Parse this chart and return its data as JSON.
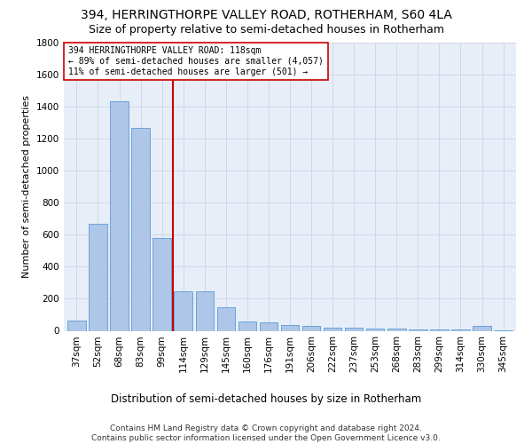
{
  "title": "394, HERRINGTHORPE VALLEY ROAD, ROTHERHAM, S60 4LA",
  "subtitle": "Size of property relative to semi-detached houses in Rotherham",
  "xlabel": "Distribution of semi-detached houses by size in Rotherham",
  "ylabel": "Number of semi-detached properties",
  "categories": [
    "37sqm",
    "52sqm",
    "68sqm",
    "83sqm",
    "99sqm",
    "114sqm",
    "129sqm",
    "145sqm",
    "160sqm",
    "176sqm",
    "191sqm",
    "206sqm",
    "222sqm",
    "237sqm",
    "253sqm",
    "268sqm",
    "283sqm",
    "299sqm",
    "314sqm",
    "330sqm",
    "345sqm"
  ],
  "values": [
    65,
    670,
    1430,
    1265,
    580,
    248,
    248,
    148,
    60,
    55,
    35,
    28,
    20,
    18,
    15,
    12,
    10,
    10,
    8,
    28,
    5
  ],
  "bar_color": "#aec6e8",
  "bar_edge_color": "#5b9bd5",
  "highlight_line_index": 5,
  "highlight_line_color": "#cc0000",
  "annotation_text": "394 HERRINGTHORPE VALLEY ROAD: 118sqm\n← 89% of semi-detached houses are smaller (4,057)\n11% of semi-detached houses are larger (501) →",
  "annotation_box_color": "#ffffff",
  "annotation_box_edge_color": "#cc0000",
  "ylim": [
    0,
    1800
  ],
  "yticks": [
    0,
    200,
    400,
    600,
    800,
    1000,
    1200,
    1400,
    1600,
    1800
  ],
  "grid_color": "#d0d8e8",
  "background_color": "#e8eef8",
  "footer_text": "Contains HM Land Registry data © Crown copyright and database right 2024.\nContains public sector information licensed under the Open Government Licence v3.0.",
  "title_fontsize": 10,
  "subtitle_fontsize": 9,
  "xlabel_fontsize": 8.5,
  "ylabel_fontsize": 8,
  "footer_fontsize": 6.5,
  "tick_fontsize": 7.5,
  "annotation_fontsize": 7
}
